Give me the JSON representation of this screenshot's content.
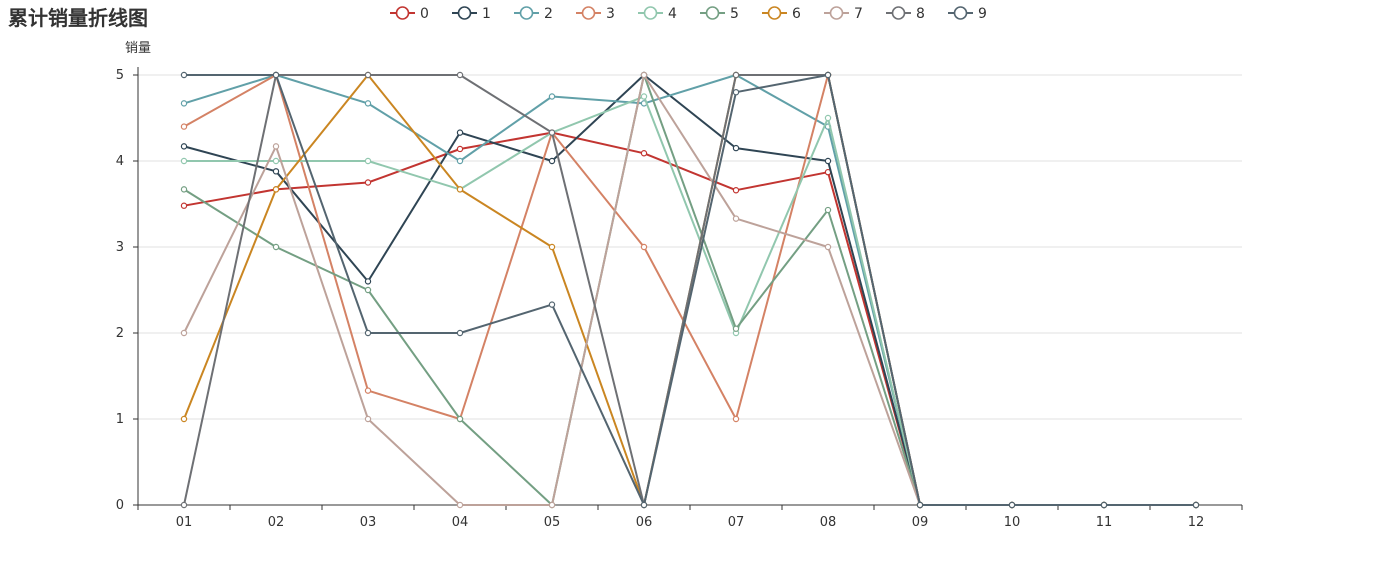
{
  "chart_data": {
    "type": "line",
    "title": "累计销量折线图",
    "xlabel": "",
    "ylabel": "销量",
    "ylim": [
      0,
      5
    ],
    "yticks": [
      "0",
      "1",
      "2",
      "3",
      "4",
      "5"
    ],
    "grid": "horizontal",
    "legend_position": "top-center",
    "categories": [
      "01",
      "02",
      "03",
      "04",
      "05",
      "06",
      "07",
      "08",
      "09",
      "10",
      "11",
      "12"
    ],
    "series": [
      {
        "name": "0",
        "color": "#c23531",
        "values": [
          3.48,
          3.67,
          3.75,
          4.14,
          4.33,
          4.09,
          3.66,
          3.87,
          0,
          0,
          0,
          0
        ]
      },
      {
        "name": "1",
        "color": "#2f4554",
        "values": [
          4.17,
          3.88,
          2.6,
          4.33,
          4.0,
          5.0,
          4.15,
          4.0,
          0,
          0,
          0,
          0
        ]
      },
      {
        "name": "2",
        "color": "#61a0a8",
        "values": [
          4.67,
          5.0,
          4.67,
          4.0,
          4.75,
          4.67,
          5.0,
          4.4,
          0,
          0,
          0,
          0
        ]
      },
      {
        "name": "3",
        "color": "#d48265",
        "values": [
          4.4,
          5.0,
          1.33,
          1.0,
          4.33,
          3.0,
          1.0,
          5.0,
          0,
          0,
          0,
          0
        ]
      },
      {
        "name": "4",
        "color": "#91c7ae",
        "values": [
          4.0,
          4.0,
          4.0,
          3.67,
          4.33,
          4.75,
          2.0,
          4.5,
          0,
          0,
          0,
          0
        ]
      },
      {
        "name": "5",
        "color": "#749f83",
        "values": [
          3.67,
          3.0,
          2.5,
          1.0,
          0.0,
          5.0,
          2.05,
          3.43,
          0,
          0,
          0,
          0
        ]
      },
      {
        "name": "6",
        "color": "#ca8622",
        "values": [
          1.0,
          3.67,
          5.0,
          3.67,
          3.0,
          0.0,
          5.0,
          5.0,
          0,
          0,
          0,
          0
        ]
      },
      {
        "name": "7",
        "color": "#bda29a",
        "values": [
          2.0,
          4.17,
          1.0,
          0.0,
          0.0,
          5.0,
          3.33,
          3.0,
          0,
          0,
          0,
          0
        ]
      },
      {
        "name": "8",
        "color": "#6e7074",
        "values": [
          0.0,
          5.0,
          5.0,
          5.0,
          4.33,
          0.0,
          5.0,
          5.0,
          0,
          0,
          0,
          0
        ]
      },
      {
        "name": "9",
        "color": "#546570",
        "values": [
          5.0,
          5.0,
          2.0,
          2.0,
          2.33,
          0.0,
          4.8,
          5.0,
          0,
          0,
          0,
          0
        ]
      }
    ]
  }
}
